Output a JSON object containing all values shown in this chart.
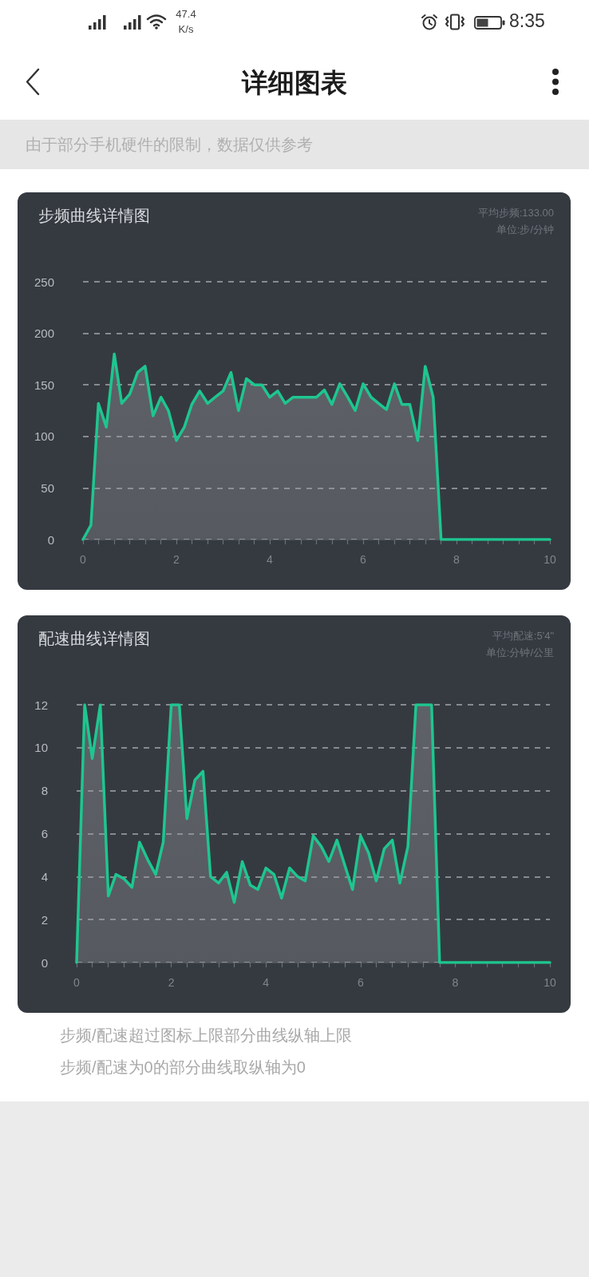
{
  "chart_data": [
    {
      "type": "area",
      "title": "步频曲线详情图",
      "subtitle": "平均步频:133.00",
      "ylabel": "单位:步/分钟",
      "annotations": [
        "47.4 K/s",
        "8:35",
        "详细图表",
        "由于部分手机硬件的限制，数据仅供参考"
      ],
      "x": [
        0,
        0.17,
        0.33,
        0.5,
        0.67,
        0.83,
        1,
        1.17,
        1.33,
        1.5,
        1.67,
        1.83,
        2,
        2.17,
        2.33,
        2.5,
        2.67,
        2.83,
        3,
        3.17,
        3.33,
        3.5,
        3.67,
        3.83,
        4,
        4.17,
        4.33,
        4.5,
        4.67,
        4.83,
        5,
        5.17,
        5.33,
        5.5,
        5.67,
        5.83,
        6,
        6.17,
        6.33,
        6.5,
        6.67,
        6.83,
        7,
        7.17,
        7.33,
        7.5,
        7.67,
        7.83,
        8,
        8.17,
        8.33,
        8.5,
        8.67,
        8.83,
        9,
        9.17,
        9.33,
        9.5,
        9.67,
        9.83,
        10
      ],
      "values": [
        0,
        14,
        132,
        109,
        180,
        132,
        141,
        162,
        168,
        120,
        138,
        125,
        96,
        109,
        131,
        144,
        132,
        138,
        144,
        162,
        125,
        156,
        150,
        150,
        138,
        144,
        132,
        138,
        138,
        138,
        138,
        145,
        131,
        151,
        138,
        125,
        151,
        138,
        132,
        126,
        151,
        131,
        131,
        96,
        168,
        138,
        0,
        0,
        0,
        0,
        0,
        0,
        0,
        0,
        0,
        0,
        0,
        0,
        0,
        0,
        0
      ],
      "color": "#1ec68f",
      "xlim": [
        0,
        10
      ],
      "xticks": [
        0,
        {
          "value": 0.33,
          "label": null
        },
        {
          "value": 0.67,
          "label": null
        },
        {
          "value": 1,
          "label": null
        },
        {
          "value": 1.33,
          "label": null
        },
        {
          "value": 1.67,
          "label": null
        },
        2,
        {
          "value": 2.33,
          "label": null
        },
        {
          "value": 2.67,
          "label": null
        },
        {
          "value": 3,
          "label": null
        },
        {
          "value": 3.33,
          "label": null
        },
        {
          "value": 3.67,
          "label": null
        },
        4,
        {
          "value": 4.33,
          "label": null
        },
        {
          "value": 4.67,
          "label": null
        },
        {
          "value": 5,
          "label": null
        },
        {
          "value": 5.33,
          "label": null
        },
        {
          "value": 5.67,
          "label": null
        },
        6,
        {
          "value": 6.33,
          "label": null
        },
        {
          "value": 6.67,
          "label": null
        },
        {
          "value": 7,
          "label": null
        },
        {
          "value": 7.33,
          "label": null
        },
        {
          "value": 7.67,
          "label": null
        },
        8,
        {
          "value": 8.33,
          "label": null
        },
        {
          "value": 8.67,
          "label": null
        },
        {
          "value": 9,
          "label": null
        },
        {
          "value": 9.33,
          "label": null
        },
        {
          "value": 9.67,
          "label": null
        },
        10
      ],
      "ylim": [
        0,
        250
      ],
      "yticks": [
        0,
        50,
        100,
        150,
        200,
        250
      ],
      "grid": "y",
      "marker": "none",
      "line_style": "solid"
    },
    {
      "type": "area",
      "title": "配速曲线详情图",
      "subtitle": "平均配速:5'4\"",
      "ylabel": "单位:分钟/公里",
      "annotations": [
        "步频/配速超过图标上限部分曲线纵轴上限",
        "步频/配速为0的部分曲线取纵轴为0"
      ],
      "x": [
        0,
        0.17,
        0.33,
        0.5,
        0.67,
        0.83,
        1,
        1.17,
        1.33,
        1.5,
        1.67,
        1.83,
        2,
        2.17,
        2.33,
        2.5,
        2.67,
        2.83,
        3,
        3.17,
        3.33,
        3.5,
        3.67,
        3.83,
        4,
        4.17,
        4.33,
        4.5,
        4.67,
        4.83,
        5,
        5.17,
        5.33,
        5.5,
        5.67,
        5.83,
        6,
        6.17,
        6.33,
        6.5,
        6.67,
        6.83,
        7,
        7.17,
        7.33,
        7.5,
        7.67,
        7.83,
        8,
        8.17,
        8.33,
        8.5,
        8.67,
        8.83,
        9,
        9.17,
        9.33,
        9.5,
        9.67,
        9.83,
        10
      ],
      "values": [
        0,
        12,
        9.5,
        12,
        3.1,
        4.1,
        3.9,
        3.5,
        5.6,
        4.8,
        4.1,
        5.6,
        12,
        12,
        6.7,
        8.5,
        8.9,
        4.0,
        3.7,
        4.2,
        2.8,
        4.7,
        3.6,
        3.4,
        4.4,
        4.1,
        3.0,
        4.4,
        4.0,
        3.8,
        5.9,
        5.4,
        4.7,
        5.7,
        4.5,
        3.4,
        5.9,
        5.1,
        3.8,
        5.3,
        5.7,
        3.7,
        5.4,
        12,
        12,
        12,
        0,
        0,
        0,
        0,
        0,
        0,
        0,
        0,
        0,
        0,
        0,
        0,
        0,
        0,
        0
      ],
      "color": "#1ec68f",
      "xlim": [
        0,
        10
      ],
      "xticks": [
        0,
        {
          "value": 0.33,
          "label": null
        },
        {
          "value": 0.67,
          "label": null
        },
        {
          "value": 1,
          "label": null
        },
        {
          "value": 1.33,
          "label": null
        },
        {
          "value": 1.67,
          "label": null
        },
        2,
        {
          "value": 2.33,
          "label": null
        },
        {
          "value": 2.67,
          "label": null
        },
        {
          "value": 3,
          "label": null
        },
        {
          "value": 3.33,
          "label": null
        },
        {
          "value": 3.67,
          "label": null
        },
        4,
        {
          "value": 4.33,
          "label": null
        },
        {
          "value": 4.67,
          "label": null
        },
        {
          "value": 5,
          "label": null
        },
        {
          "value": 5.33,
          "label": null
        },
        {
          "value": 5.67,
          "label": null
        },
        6,
        {
          "value": 6.33,
          "label": null
        },
        {
          "value": 6.67,
          "label": null
        },
        {
          "value": 7,
          "label": null
        },
        {
          "value": 7.33,
          "label": null
        },
        {
          "value": 7.67,
          "label": null
        },
        8,
        {
          "value": 8.33,
          "label": null
        },
        {
          "value": 8.67,
          "label": null
        },
        {
          "value": 9,
          "label": null
        },
        {
          "value": 9.33,
          "label": null
        },
        {
          "value": 9.67,
          "label": null
        },
        10
      ],
      "ylim": [
        0,
        12
      ],
      "yticks": [
        0,
        2,
        4,
        6,
        8,
        10,
        12
      ],
      "grid": "y",
      "marker": "none",
      "line_style": "solid"
    }
  ]
}
